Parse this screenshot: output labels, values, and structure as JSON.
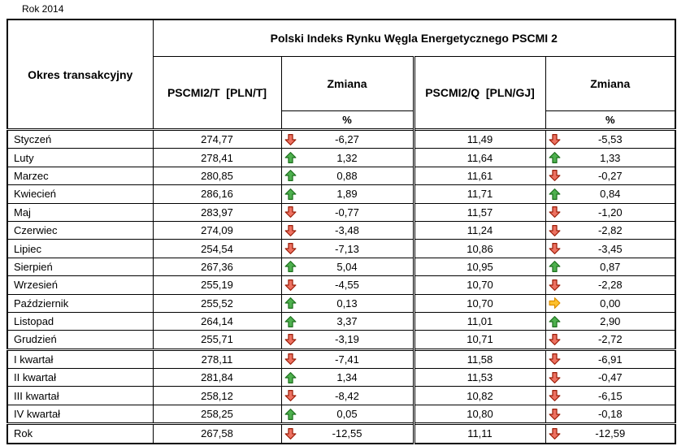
{
  "page_title": "Rok 2014",
  "chart_data": {
    "type": "table",
    "title": "Polski Indeks Rynku Węgla Energetycznego PSCMI 2",
    "row_header": "Okres transakcyjny",
    "columns": {
      "t": "PSCMI2/T  [PLN/T]",
      "t_change": "Zmiana",
      "t_change_unit": "%",
      "q": "PSCMI2/Q  [PLN/GJ]",
      "q_change": "Zmiana",
      "q_change_unit": "%"
    },
    "rows": [
      {
        "label": "Styczeń",
        "section": "month",
        "t": "274,77",
        "t_dir": "down",
        "t_chg": "-6,27",
        "q": "11,49",
        "q_dir": "down",
        "q_chg": "-5,53"
      },
      {
        "label": "Luty",
        "section": "month",
        "t": "278,41",
        "t_dir": "up",
        "t_chg": "1,32",
        "q": "11,64",
        "q_dir": "up",
        "q_chg": "1,33"
      },
      {
        "label": "Marzec",
        "section": "month",
        "t": "280,85",
        "t_dir": "up",
        "t_chg": "0,88",
        "q": "11,61",
        "q_dir": "down",
        "q_chg": "-0,27"
      },
      {
        "label": "Kwiecień",
        "section": "month",
        "t": "286,16",
        "t_dir": "up",
        "t_chg": "1,89",
        "q": "11,71",
        "q_dir": "up",
        "q_chg": "0,84"
      },
      {
        "label": "Maj",
        "section": "month",
        "t": "283,97",
        "t_dir": "down",
        "t_chg": "-0,77",
        "q": "11,57",
        "q_dir": "down",
        "q_chg": "-1,20"
      },
      {
        "label": "Czerwiec",
        "section": "month",
        "t": "274,09",
        "t_dir": "down",
        "t_chg": "-3,48",
        "q": "11,24",
        "q_dir": "down",
        "q_chg": "-2,82"
      },
      {
        "label": "Lipiec",
        "section": "month",
        "t": "254,54",
        "t_dir": "down",
        "t_chg": "-7,13",
        "q": "10,86",
        "q_dir": "down",
        "q_chg": "-3,45"
      },
      {
        "label": "Sierpień",
        "section": "month",
        "t": "267,36",
        "t_dir": "up",
        "t_chg": "5,04",
        "q": "10,95",
        "q_dir": "up",
        "q_chg": "0,87"
      },
      {
        "label": "Wrzesień",
        "section": "month",
        "t": "255,19",
        "t_dir": "down",
        "t_chg": "-4,55",
        "q": "10,70",
        "q_dir": "down",
        "q_chg": "-2,28"
      },
      {
        "label": "Październik",
        "section": "month",
        "t": "255,52",
        "t_dir": "up",
        "t_chg": "0,13",
        "q": "10,70",
        "q_dir": "flat",
        "q_chg": "0,00"
      },
      {
        "label": "Listopad",
        "section": "month",
        "t": "264,14",
        "t_dir": "up",
        "t_chg": "3,37",
        "q": "11,01",
        "q_dir": "up",
        "q_chg": "2,90"
      },
      {
        "label": "Grudzień",
        "section": "month",
        "t": "255,71",
        "t_dir": "down",
        "t_chg": "-3,19",
        "q": "10,71",
        "q_dir": "down",
        "q_chg": "-2,72"
      },
      {
        "label": "I kwartał",
        "section": "quarter",
        "t": "278,11",
        "t_dir": "down",
        "t_chg": "-7,41",
        "q": "11,58",
        "q_dir": "down",
        "q_chg": "-6,91"
      },
      {
        "label": "II kwartał",
        "section": "quarter",
        "t": "281,84",
        "t_dir": "up",
        "t_chg": "1,34",
        "q": "11,53",
        "q_dir": "down",
        "q_chg": "-0,47"
      },
      {
        "label": "III kwartał",
        "section": "quarter",
        "t": "258,12",
        "t_dir": "down",
        "t_chg": "-8,42",
        "q": "10,82",
        "q_dir": "down",
        "q_chg": "-6,15"
      },
      {
        "label": "IV kwartał",
        "section": "quarter",
        "t": "258,25",
        "t_dir": "up",
        "t_chg": "0,05",
        "q": "10,80",
        "q_dir": "down",
        "q_chg": "-0,18"
      },
      {
        "label": "Rok",
        "section": "year",
        "t": "267,58",
        "t_dir": "down",
        "t_chg": "-12,55",
        "q": "11,11",
        "q_dir": "down",
        "q_chg": "-12,59"
      }
    ]
  },
  "icons": {
    "up": {
      "name": "up-arrow-icon",
      "fill": "#4eb04e",
      "stroke": "#1e701e"
    },
    "down": {
      "name": "down-arrow-icon",
      "fill": "#ed7161",
      "stroke": "#9a1d08"
    },
    "flat": {
      "name": "right-arrow-icon",
      "fill": "#fdc12e",
      "stroke": "#dd8d00"
    }
  },
  "colors": {
    "border": "#000000",
    "background": "#ffffff",
    "text": "#000000"
  }
}
